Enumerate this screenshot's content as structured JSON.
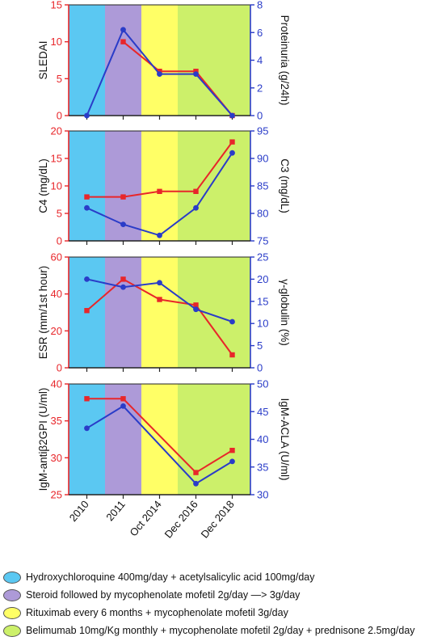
{
  "chart_data": [
    {
      "type": "line",
      "x_categories": [
        "2010",
        "2011",
        "Oct 2014",
        "Dec 2016",
        "Dec 2018"
      ],
      "left_axis": {
        "label": "SLEDAI",
        "range": [
          0,
          15
        ],
        "ticks": [
          "0",
          "5",
          "10",
          "15"
        ],
        "color": "#e8262a"
      },
      "right_axis": {
        "label": "Proteinuria (g/24h)",
        "range": [
          0,
          8
        ],
        "ticks": [
          "0",
          "2",
          "4",
          "6",
          "8"
        ],
        "color": "#2a3cc8"
      },
      "series": [
        {
          "axis": "left",
          "marker": "square",
          "points": [
            [
              2,
              10
            ],
            [
              3,
              6
            ],
            [
              4,
              6
            ],
            [
              5,
              0
            ]
          ]
        },
        {
          "axis": "right",
          "marker": "circle",
          "points": [
            [
              1,
              0
            ],
            [
              2,
              6.2
            ],
            [
              3,
              3
            ],
            [
              4,
              3
            ],
            [
              5,
              0
            ]
          ]
        }
      ]
    },
    {
      "type": "line",
      "x_categories": [
        "2010",
        "2011",
        "Oct 2014",
        "Dec 2016",
        "Dec 2018"
      ],
      "left_axis": {
        "label": "C4 (mg/dL)",
        "range": [
          0,
          20
        ],
        "ticks": [
          "0",
          "5",
          "10",
          "15",
          "20"
        ],
        "color": "#e8262a"
      },
      "right_axis": {
        "label": "C3 (mg/dL)",
        "range": [
          75,
          95
        ],
        "ticks": [
          "75",
          "80",
          "85",
          "90",
          "95"
        ],
        "color": "#2a3cc8"
      },
      "series": [
        {
          "axis": "left",
          "marker": "square",
          "points": [
            [
              1,
              8
            ],
            [
              2,
              8
            ],
            [
              3,
              9
            ],
            [
              4,
              9
            ],
            [
              5,
              18
            ]
          ]
        },
        {
          "axis": "right",
          "marker": "circle",
          "points": [
            [
              1,
              81
            ],
            [
              2,
              78
            ],
            [
              3,
              76
            ],
            [
              4,
              81
            ],
            [
              5,
              91
            ]
          ]
        }
      ]
    },
    {
      "type": "line",
      "x_categories": [
        "2010",
        "2011",
        "Oct 2014",
        "Dec 2016",
        "Dec 2018"
      ],
      "left_axis": {
        "label": "ESR (mm/1st hour)",
        "range": [
          0,
          60
        ],
        "ticks": [
          "0",
          "20",
          "40",
          "60"
        ],
        "color": "#e8262a"
      },
      "right_axis": {
        "label": "γ-globulin (%)",
        "range": [
          0,
          25
        ],
        "ticks": [
          "0",
          "5",
          "10",
          "15",
          "20",
          "25"
        ],
        "color": "#2a3cc8"
      },
      "series": [
        {
          "axis": "left",
          "marker": "square",
          "points": [
            [
              1,
              31
            ],
            [
              2,
              48
            ],
            [
              3,
              37
            ],
            [
              4,
              34
            ],
            [
              5,
              7
            ]
          ]
        },
        {
          "axis": "right",
          "marker": "circle",
          "points": [
            [
              1,
              20
            ],
            [
              2,
              18.2
            ],
            [
              3,
              19.2
            ],
            [
              4,
              13.2
            ],
            [
              5,
              10.4
            ]
          ]
        }
      ]
    },
    {
      "type": "line",
      "x_categories": [
        "2010",
        "2011",
        "Oct 2014",
        "Dec 2016",
        "Dec 2018"
      ],
      "left_axis": {
        "label": "IgM-antiβ2GPI (U/ml)",
        "range": [
          25,
          40
        ],
        "ticks": [
          "25",
          "30",
          "35",
          "40"
        ],
        "color": "#e8262a"
      },
      "right_axis": {
        "label": "IgM-ACLA (U/ml)",
        "range": [
          30,
          50
        ],
        "ticks": [
          "30",
          "35",
          "40",
          "45",
          "50"
        ],
        "color": "#2a3cc8"
      },
      "series": [
        {
          "axis": "left",
          "marker": "square",
          "points": [
            [
              1,
              38
            ],
            [
              2,
              38
            ],
            [
              4,
              28
            ],
            [
              5,
              31
            ]
          ]
        },
        {
          "axis": "right",
          "marker": "circle",
          "points": [
            [
              1,
              42
            ],
            [
              2,
              46
            ],
            [
              4,
              32
            ],
            [
              5,
              36
            ]
          ]
        }
      ]
    }
  ],
  "treatment_periods": [
    {
      "from": 0,
      "to": 1.5,
      "color": "#5bc8f2"
    },
    {
      "from": 1.5,
      "to": 2.5,
      "color": "#ad9ad8"
    },
    {
      "from": 2.5,
      "to": 3.5,
      "color": "#ffff66"
    },
    {
      "from": 3.5,
      "to": 5.5,
      "color": "#ccf06a"
    }
  ],
  "legend": [
    {
      "color": "#5bc8f2",
      "label": "Hydroxychloroquine 400mg/day + acetylsalicylic acid 100mg/day"
    },
    {
      "color": "#ad9ad8",
      "label": "Steroid followed by mycophenolate mofetil 2g/day —> 3g/day"
    },
    {
      "color": "#ffff66",
      "label": "Rituximab every 6 months + mycophenolate mofetil 3g/day"
    },
    {
      "color": "#ccf06a",
      "label": "Belimumab 10mg/Kg monthly + mycophenolate mofetil 2g/day + prednisone 2.5mg/day"
    }
  ]
}
